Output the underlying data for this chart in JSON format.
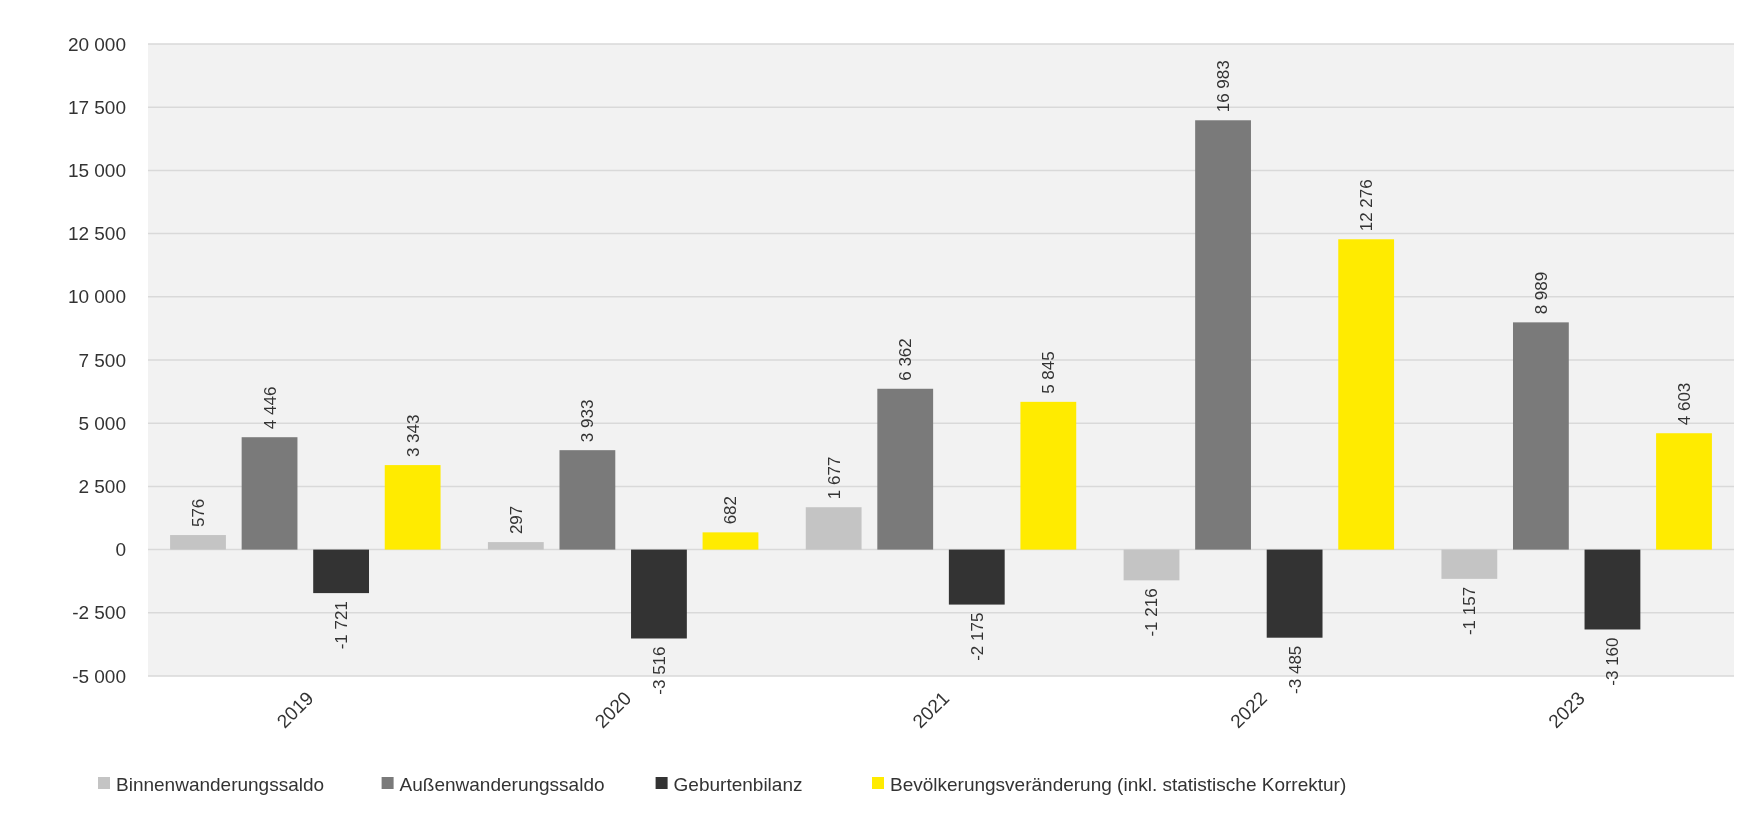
{
  "chart_data": {
    "type": "bar",
    "categories": [
      "2019",
      "2020",
      "2021",
      "2022",
      "2023"
    ],
    "series": [
      {
        "name": "Binnenwanderungssaldo",
        "color": "#c4c4c4",
        "values": [
          576,
          297,
          1677,
          -1216,
          -1157
        ],
        "value_labels": [
          "576",
          "297",
          "1 677",
          "-1 216",
          "-1 157"
        ]
      },
      {
        "name": "Außenwanderungssaldo",
        "color": "#7a7a7a",
        "values": [
          4446,
          3933,
          6362,
          16983,
          8989
        ],
        "value_labels": [
          "4 446",
          "3 933",
          "6 362",
          "16 983",
          "8 989"
        ]
      },
      {
        "name": "Geburtenbilanz",
        "color": "#333333",
        "values": [
          -1721,
          -3516,
          -2175,
          -3485,
          -3160
        ],
        "value_labels": [
          "-1 721",
          "-3 516",
          "-2 175",
          "-3 485",
          "-3 160"
        ]
      },
      {
        "name": "Bevölkerungsveränderung (inkl. statistische Korrektur)",
        "color": "#ffeb00",
        "values": [
          3343,
          682,
          5845,
          12276,
          4603
        ],
        "value_labels": [
          "3 343",
          "682",
          "5 845",
          "12 276",
          "4 603"
        ]
      }
    ],
    "ylim": [
      -5000,
      20000
    ],
    "yticks": [
      {
        "value": -5000,
        "label": "-5 000"
      },
      {
        "value": -2500,
        "label": "-2 500"
      },
      0,
      {
        "value": 2500,
        "label": "2 500"
      },
      {
        "value": 5000,
        "label": "5 000"
      },
      {
        "value": 7500,
        "label": "7 500"
      },
      {
        "value": 10000,
        "label": "10 000"
      },
      {
        "value": 12500,
        "label": "12 500"
      },
      {
        "value": 15000,
        "label": "15 000"
      },
      {
        "value": 17500,
        "label": "17 500"
      },
      {
        "value": 20000,
        "label": "20 000"
      }
    ],
    "grid": "y",
    "legend": "bottom"
  }
}
